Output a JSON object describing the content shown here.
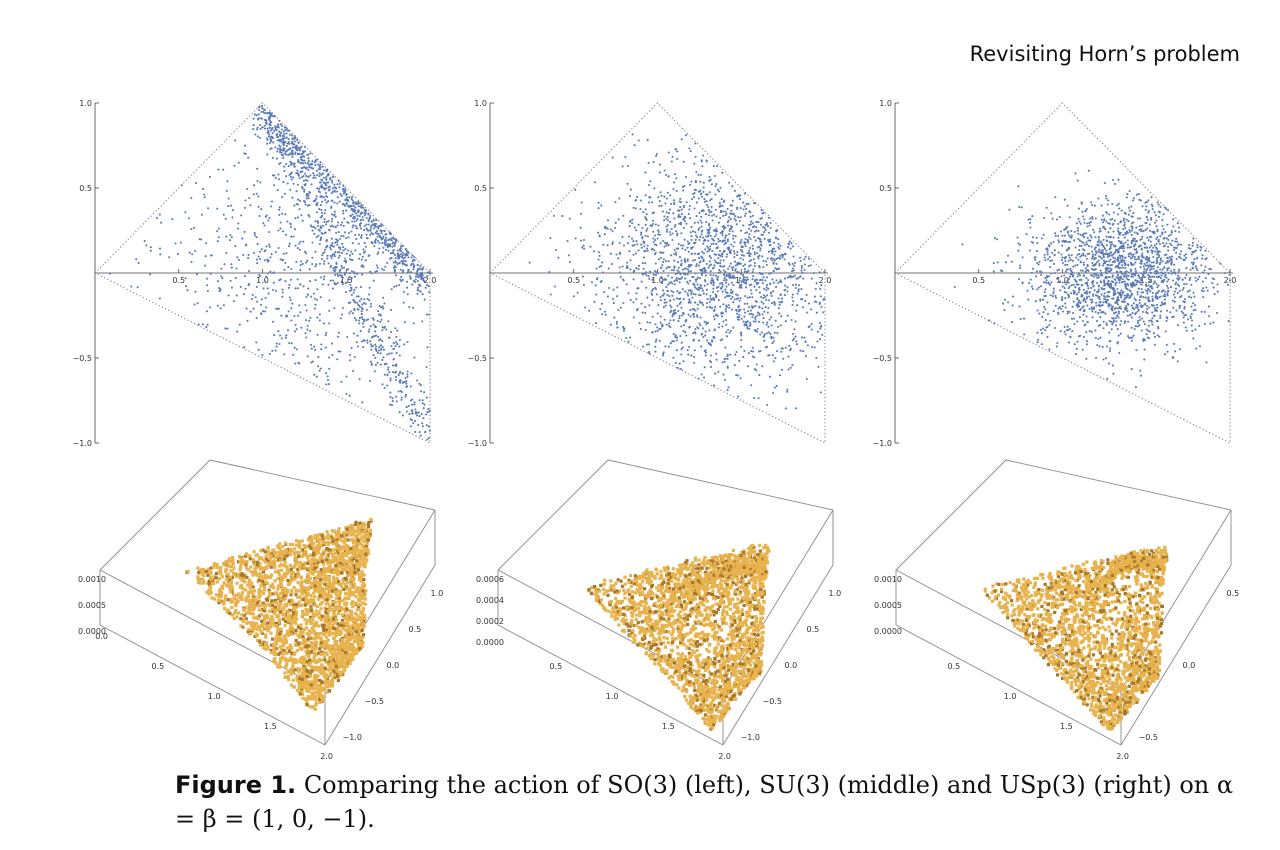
{
  "header": {
    "running_title": "Revisiting Horn’s problem"
  },
  "caption": {
    "label": "Figure 1.",
    "text": "Comparing the action of SO(3) (left), SU(3) (middle) and USp(3) (right) on ",
    "math": "α = β = (1, 0, −1)."
  },
  "colors": {
    "scatter": "#5a7bb8",
    "surface": "#e8b24c",
    "surface_dark": "#a8782a",
    "frame": "#8a8a8a",
    "triangle": "#777777"
  },
  "chart_data": [
    {
      "type": "scatter",
      "group": "SO(3)",
      "xlim": [
        0,
        2
      ],
      "ylim": [
        -1,
        1
      ],
      "xticks": [
        "0.5",
        "1.0",
        "1.5",
        "2.0"
      ],
      "yticks": [
        "1.0",
        "0.5",
        "-0.5",
        "-1.0"
      ],
      "region_vertices": [
        [
          0,
          0
        ],
        [
          1,
          1
        ],
        [
          2,
          0
        ],
        [
          2,
          -1
        ]
      ],
      "distribution": {
        "center": [
          1.35,
          0.05
        ],
        "spread": [
          0.55,
          0.45
        ],
        "density_ridge": "along edges (1,1)-(2,0) and (1,1)-(2,-1)",
        "points": 1800
      }
    },
    {
      "type": "scatter",
      "group": "SU(3)",
      "xlim": [
        0,
        2
      ],
      "ylim": [
        -1,
        1
      ],
      "xticks": [
        "0.5",
        "1.0",
        "1.5",
        "2.0"
      ],
      "yticks": [
        "1.0",
        "0.5",
        "-0.5",
        "-1.0"
      ],
      "region_vertices": [
        [
          0,
          0
        ],
        [
          1,
          1
        ],
        [
          2,
          0
        ],
        [
          2,
          -1
        ]
      ],
      "distribution": {
        "center": [
          1.4,
          0.05
        ],
        "spread": [
          0.4,
          0.35
        ],
        "points": 1800
      }
    },
    {
      "type": "scatter",
      "group": "USp(3)",
      "xlim": [
        0,
        2
      ],
      "ylim": [
        -1,
        1
      ],
      "xticks": [
        "0.5",
        "1.0",
        "1.5",
        "2.0"
      ],
      "yticks": [
        "1.0",
        "0.5",
        "-0.5",
        "-1.0"
      ],
      "region_vertices": [
        [
          0,
          0
        ],
        [
          1,
          1
        ],
        [
          2,
          0
        ],
        [
          2,
          -1
        ]
      ],
      "distribution": {
        "center": [
          1.35,
          0.0
        ],
        "spread": [
          0.28,
          0.22
        ],
        "points": 1800
      }
    },
    {
      "type": "surface3d",
      "group": "SO(3)",
      "zticks": [
        "0.0010",
        "0.0005",
        "0.0000"
      ],
      "xticks": [
        "0.0",
        "0.5",
        "1.0",
        "1.5",
        "2.0"
      ],
      "yticks": [
        "1.0",
        "0.5",
        "0.0",
        "-0.5",
        "-1.0"
      ]
    },
    {
      "type": "surface3d",
      "group": "SU(3)",
      "zticks": [
        "0.0006",
        "0.0004",
        "0.0002",
        "0.0000"
      ],
      "xticks": [
        "0.5",
        "1.0",
        "1.5",
        "2.0"
      ],
      "yticks": [
        "1.0",
        "0.5",
        "0.0",
        "-0.5",
        "-1.0"
      ]
    },
    {
      "type": "surface3d",
      "group": "USp(3)",
      "zticks": [
        "0.0010",
        "0.0005",
        "0.0000"
      ],
      "xticks": [
        "0.5",
        "1.0",
        "1.5",
        "2.0"
      ],
      "yticks": [
        "0.5",
        "0.0",
        "-0.5"
      ]
    }
  ]
}
